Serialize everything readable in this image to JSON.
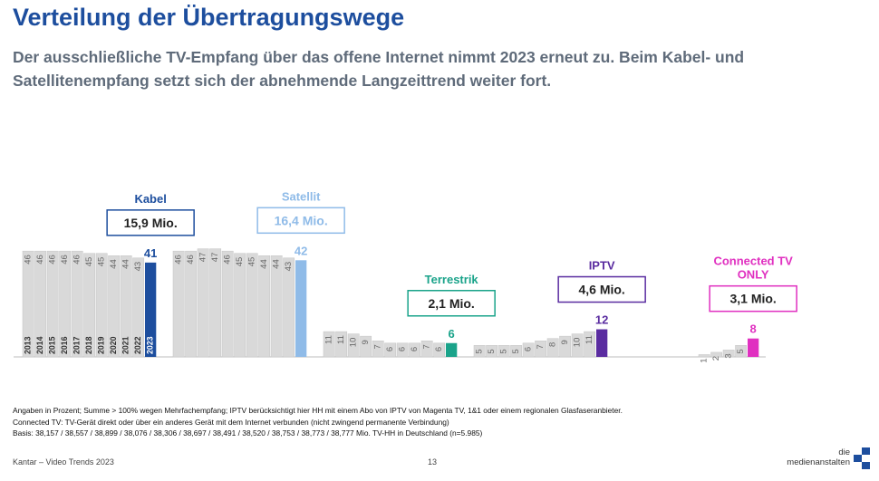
{
  "title": "Verteilung der Übertragungswege",
  "subtitle": "Der ausschließliche TV-Empfang über das offene Internet nimmt 2023 erneut zu. Beim Kabel- und Satellitenempfang setzt sich der abnehmende Langzeittrend weiter fort.",
  "chart_data": {
    "type": "bar",
    "categories": [
      "2013",
      "2014",
      "2015",
      "2016",
      "2017",
      "2018",
      "2019",
      "2020",
      "2021",
      "2022",
      "2023"
    ],
    "groups": [
      {
        "name": "Kabel",
        "callout": "15,9 Mio.",
        "values": [
          46,
          46,
          46,
          46,
          46,
          45,
          45,
          44,
          44,
          43,
          41
        ],
        "color": "#1d4e9e",
        "label_color": "#1d4e9e"
      },
      {
        "name": "Satellit",
        "callout": "16,4 Mio.",
        "values": [
          46,
          46,
          47,
          47,
          46,
          45,
          45,
          44,
          44,
          43,
          42
        ],
        "color": "#8fbbe8",
        "label_color": "#8fbbe8"
      },
      {
        "name": "Terrestrik",
        "callout": "2,1 Mio.",
        "values": [
          11,
          11,
          10,
          9,
          7,
          6,
          6,
          6,
          7,
          6,
          6
        ],
        "color": "#1aa38a",
        "label_color": "#1aa38a"
      },
      {
        "name": "IPTV",
        "callout": "4,6 Mio.",
        "values": [
          5,
          5,
          5,
          5,
          6,
          7,
          8,
          9,
          10,
          11,
          12
        ],
        "color": "#5a2ca0",
        "label_color": "#5a2ca0"
      },
      {
        "name": "Connected TV ONLY",
        "callout": "3,1 Mio.",
        "values": [
          null,
          null,
          null,
          null,
          null,
          null,
          1,
          2,
          3,
          5,
          8
        ],
        "color": "#e030c0",
        "label_color": "#e030c0"
      }
    ],
    "highlight_year": "2023"
  },
  "notes": [
    "Angaben in Prozent; Summe > 100% wegen Mehrfachempfang; IPTV berücksichtigt hier HH mit einem Abo von IPTV von Magenta TV, 1&1 oder einem regionalen Glasfaseranbieter.",
    "Connected TV: TV-Gerät direkt oder über ein anderes Gerät mit dem Internet verbunden (nicht zwingend permanente Verbindung)",
    "Basis: 38,157 / 38,557 / 38,899 / 38,076 / 38,306 / 38,697 / 38,491 / 38,520 / 38,753 / 38,773 / 38,777 Mio. TV-HH in Deutschland (n=5.985)"
  ],
  "footer": {
    "source": "Kantar – Video Trends 2023",
    "page": "13"
  },
  "logo": {
    "line1": "die",
    "line2": "medienanstalten"
  }
}
